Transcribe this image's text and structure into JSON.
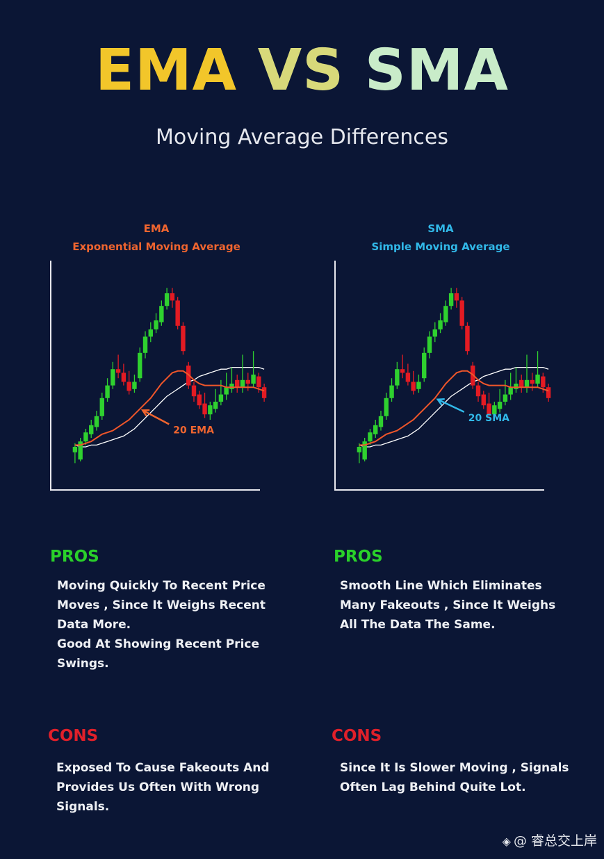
{
  "title": {
    "part1": "EMA",
    "part2": "VS",
    "part3": "SMA"
  },
  "subtitle": "Moving Average Differences",
  "ema": {
    "short": "EMA",
    "long": "Exponential Moving Average",
    "pros_title": "PROS",
    "pros_lines": [
      "Moving Quickly To Recent Price",
      "Moves , Since It Weighs Recent",
      "Data More.",
      "Good At Showing Recent Price",
      "Swings."
    ],
    "cons_title": "CONS",
    "cons_lines": [
      "Exposed To Cause Fakeouts And",
      "Provides Us Often With Wrong",
      "Signals."
    ]
  },
  "sma": {
    "short": "SMA",
    "long": "Simple Moving Average",
    "pros_title": "PROS",
    "pros_lines": [
      "Smooth Line Which Eliminates",
      "Many Fakeouts , Since It Weighs",
      "All The Data The Same."
    ],
    "cons_title": "CONS",
    "cons_lines": [
      "Since It Is Slower Moving , Signals",
      "Often Lag Behind Quite Lot."
    ]
  },
  "watermark": {
    "icon": "diamond-logo-icon",
    "text": "@ 睿总交上岸"
  },
  "colors": {
    "background": "#0b1635",
    "bull": "#2fd12f",
    "bear": "#e31b23",
    "ema_line": "#f0562a",
    "sma_line": "#f0562a",
    "slow_line": "#ffffff",
    "ema_accent": "#f0652f",
    "sma_accent": "#31b8e8",
    "pros": "#2ad12a",
    "cons": "#e0202a"
  },
  "chart_data": [
    {
      "type": "candlestick",
      "title": "EMA",
      "annotation": "20 EMA",
      "ylim": [
        0,
        100
      ],
      "candles": [
        {
          "o": 12,
          "c": 15,
          "h": 17,
          "l": 6
        },
        {
          "o": 8,
          "c": 18,
          "h": 20,
          "l": 7
        },
        {
          "o": 18,
          "c": 23,
          "h": 25,
          "l": 16
        },
        {
          "o": 22,
          "c": 27,
          "h": 30,
          "l": 20
        },
        {
          "o": 26,
          "c": 32,
          "h": 35,
          "l": 24
        },
        {
          "o": 32,
          "c": 42,
          "h": 45,
          "l": 30
        },
        {
          "o": 42,
          "c": 49,
          "h": 53,
          "l": 40
        },
        {
          "o": 49,
          "c": 58,
          "h": 62,
          "l": 47
        },
        {
          "o": 58,
          "c": 56,
          "h": 66,
          "l": 53
        },
        {
          "o": 56,
          "c": 51,
          "h": 61,
          "l": 49
        },
        {
          "o": 51,
          "c": 46,
          "h": 57,
          "l": 44
        },
        {
          "o": 47,
          "c": 51,
          "h": 55,
          "l": 45
        },
        {
          "o": 53,
          "c": 67,
          "h": 70,
          "l": 51
        },
        {
          "o": 67,
          "c": 76,
          "h": 79,
          "l": 64
        },
        {
          "o": 76,
          "c": 80,
          "h": 84,
          "l": 73
        },
        {
          "o": 80,
          "c": 85,
          "h": 89,
          "l": 78
        },
        {
          "o": 84,
          "c": 93,
          "h": 96,
          "l": 82
        },
        {
          "o": 93,
          "c": 100,
          "h": 103,
          "l": 91
        },
        {
          "o": 100,
          "c": 96,
          "h": 103,
          "l": 92
        },
        {
          "o": 96,
          "c": 82,
          "h": 98,
          "l": 80
        },
        {
          "o": 82,
          "c": 68,
          "h": 84,
          "l": 66
        },
        {
          "o": 60,
          "c": 49,
          "h": 62,
          "l": 47
        },
        {
          "o": 49,
          "c": 43,
          "h": 51,
          "l": 40
        },
        {
          "o": 44,
          "c": 38,
          "h": 46,
          "l": 36
        },
        {
          "o": 39,
          "c": 33,
          "h": 45,
          "l": 31
        },
        {
          "o": 33,
          "c": 38,
          "h": 40,
          "l": 30
        },
        {
          "o": 36,
          "c": 40,
          "h": 47,
          "l": 34
        },
        {
          "o": 40,
          "c": 44,
          "h": 52,
          "l": 38
        },
        {
          "o": 44,
          "c": 48,
          "h": 56,
          "l": 41
        },
        {
          "o": 47,
          "c": 50,
          "h": 59,
          "l": 45
        },
        {
          "o": 52,
          "c": 48,
          "h": 55,
          "l": 45
        },
        {
          "o": 48,
          "c": 52,
          "h": 66,
          "l": 45
        },
        {
          "o": 52,
          "c": 50,
          "h": 56,
          "l": 46
        },
        {
          "o": 50,
          "c": 55,
          "h": 68,
          "l": 48
        },
        {
          "o": 54,
          "c": 48,
          "h": 56,
          "l": 45
        },
        {
          "o": 48,
          "c": 42,
          "h": 50,
          "l": 40
        }
      ],
      "series": [
        {
          "name": "20 EMA",
          "values": [
            16,
            16,
            17,
            18,
            20,
            22,
            23,
            24,
            26,
            28,
            30,
            33,
            36,
            39,
            42,
            46,
            50,
            53,
            56,
            57,
            57,
            55,
            52,
            50,
            49,
            49,
            49,
            49,
            48,
            48,
            48,
            48,
            48,
            48,
            47,
            46
          ]
        },
        {
          "values": [
            16,
            15,
            15,
            16,
            16,
            17,
            18,
            19,
            20,
            21,
            23,
            25,
            28,
            31,
            34,
            37,
            40,
            43,
            45,
            47,
            49,
            51,
            52,
            54,
            55,
            56,
            57,
            58,
            58,
            59,
            59,
            59,
            59,
            59,
            59,
            58
          ]
        }
      ]
    },
    {
      "type": "candlestick",
      "title": "SMA",
      "annotation": "20 SMA",
      "ylim": [
        0,
        100
      ],
      "candles": [
        {
          "o": 12,
          "c": 15,
          "h": 17,
          "l": 6
        },
        {
          "o": 8,
          "c": 18,
          "h": 20,
          "l": 7
        },
        {
          "o": 18,
          "c": 23,
          "h": 25,
          "l": 16
        },
        {
          "o": 22,
          "c": 27,
          "h": 30,
          "l": 20
        },
        {
          "o": 26,
          "c": 32,
          "h": 35,
          "l": 24
        },
        {
          "o": 32,
          "c": 42,
          "h": 45,
          "l": 30
        },
        {
          "o": 42,
          "c": 49,
          "h": 53,
          "l": 40
        },
        {
          "o": 49,
          "c": 58,
          "h": 62,
          "l": 47
        },
        {
          "o": 58,
          "c": 56,
          "h": 66,
          "l": 53
        },
        {
          "o": 56,
          "c": 51,
          "h": 61,
          "l": 49
        },
        {
          "o": 51,
          "c": 46,
          "h": 57,
          "l": 44
        },
        {
          "o": 47,
          "c": 51,
          "h": 55,
          "l": 45
        },
        {
          "o": 53,
          "c": 67,
          "h": 70,
          "l": 51
        },
        {
          "o": 67,
          "c": 76,
          "h": 79,
          "l": 64
        },
        {
          "o": 76,
          "c": 80,
          "h": 84,
          "l": 73
        },
        {
          "o": 80,
          "c": 85,
          "h": 89,
          "l": 78
        },
        {
          "o": 84,
          "c": 93,
          "h": 96,
          "l": 82
        },
        {
          "o": 93,
          "c": 100,
          "h": 103,
          "l": 91
        },
        {
          "o": 100,
          "c": 96,
          "h": 103,
          "l": 92
        },
        {
          "o": 96,
          "c": 82,
          "h": 98,
          "l": 80
        },
        {
          "o": 82,
          "c": 68,
          "h": 84,
          "l": 66
        },
        {
          "o": 60,
          "c": 49,
          "h": 62,
          "l": 47
        },
        {
          "o": 49,
          "c": 43,
          "h": 51,
          "l": 40
        },
        {
          "o": 44,
          "c": 38,
          "h": 46,
          "l": 36
        },
        {
          "o": 39,
          "c": 33,
          "h": 45,
          "l": 31
        },
        {
          "o": 33,
          "c": 38,
          "h": 40,
          "l": 30
        },
        {
          "o": 36,
          "c": 40,
          "h": 47,
          "l": 34
        },
        {
          "o": 40,
          "c": 44,
          "h": 52,
          "l": 38
        },
        {
          "o": 44,
          "c": 48,
          "h": 56,
          "l": 41
        },
        {
          "o": 47,
          "c": 50,
          "h": 59,
          "l": 45
        },
        {
          "o": 52,
          "c": 48,
          "h": 55,
          "l": 45
        },
        {
          "o": 48,
          "c": 52,
          "h": 66,
          "l": 45
        },
        {
          "o": 52,
          "c": 50,
          "h": 56,
          "l": 46
        },
        {
          "o": 50,
          "c": 55,
          "h": 68,
          "l": 48
        },
        {
          "o": 54,
          "c": 48,
          "h": 56,
          "l": 45
        },
        {
          "o": 48,
          "c": 42,
          "h": 50,
          "l": 40
        }
      ],
      "series": [
        {
          "name": "20 SMA",
          "values": [
            16,
            16,
            17,
            18,
            20,
            22,
            23,
            24,
            26,
            28,
            30,
            33,
            36,
            39,
            42,
            46,
            50,
            53,
            56,
            57,
            57,
            55,
            52,
            50,
            49,
            49,
            49,
            49,
            48,
            48,
            48,
            48,
            48,
            48,
            47,
            46
          ]
        },
        {
          "values": [
            16,
            15,
            15,
            16,
            16,
            17,
            18,
            19,
            20,
            21,
            23,
            25,
            28,
            31,
            34,
            37,
            40,
            43,
            45,
            47,
            49,
            51,
            52,
            54,
            55,
            56,
            57,
            58,
            58,
            59,
            59,
            59,
            59,
            59,
            59,
            58
          ]
        }
      ]
    }
  ]
}
